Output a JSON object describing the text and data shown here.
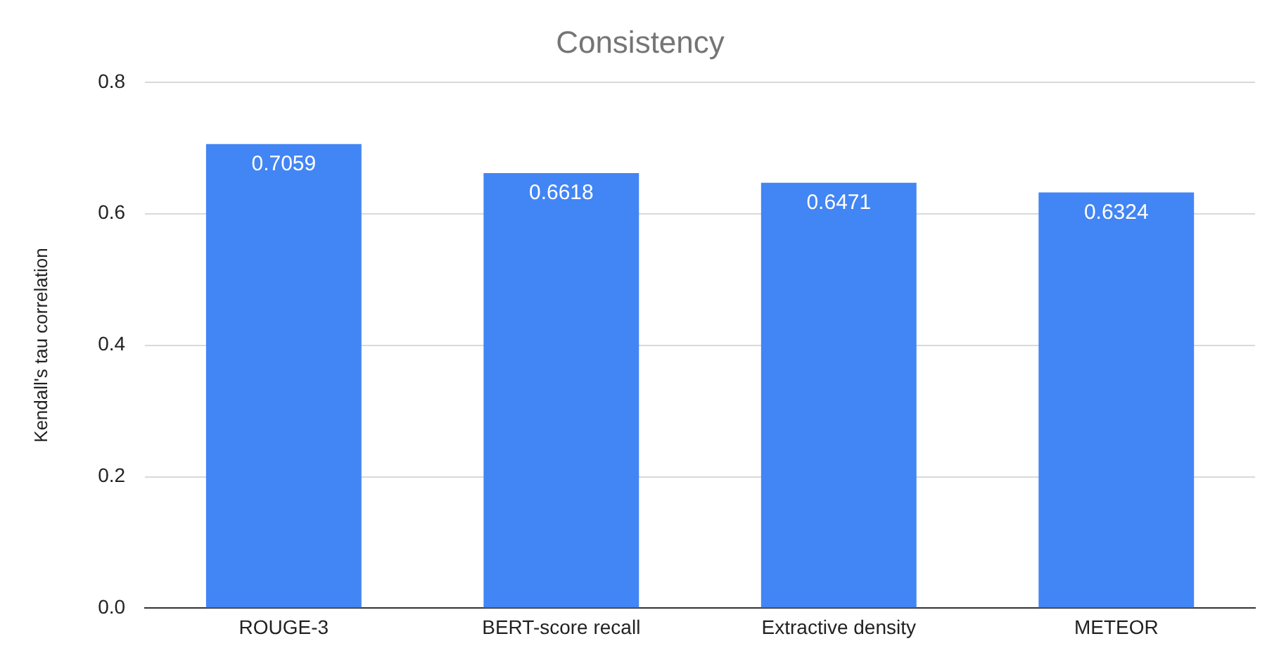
{
  "chart_data": {
    "type": "bar",
    "title": "Consistency",
    "ylabel": "Kendall's tau correlation",
    "categories": [
      "ROUGE-3",
      "BERT-score recall",
      "Extractive density",
      "METEOR"
    ],
    "values": [
      0.7059,
      0.6618,
      0.6471,
      0.6324
    ],
    "color": "#4285f4",
    "data_labels": true,
    "ylim": [
      0,
      0.8
    ],
    "yticks": [
      {
        "value": 0,
        "label": "0.0"
      },
      {
        "value": 0.2,
        "label": "0.2"
      },
      {
        "value": 0.4,
        "label": "0.4"
      },
      {
        "value": 0.6,
        "label": "0.6"
      },
      {
        "value": 0.8,
        "label": "0.8"
      }
    ],
    "grid": "y",
    "legend": false
  }
}
